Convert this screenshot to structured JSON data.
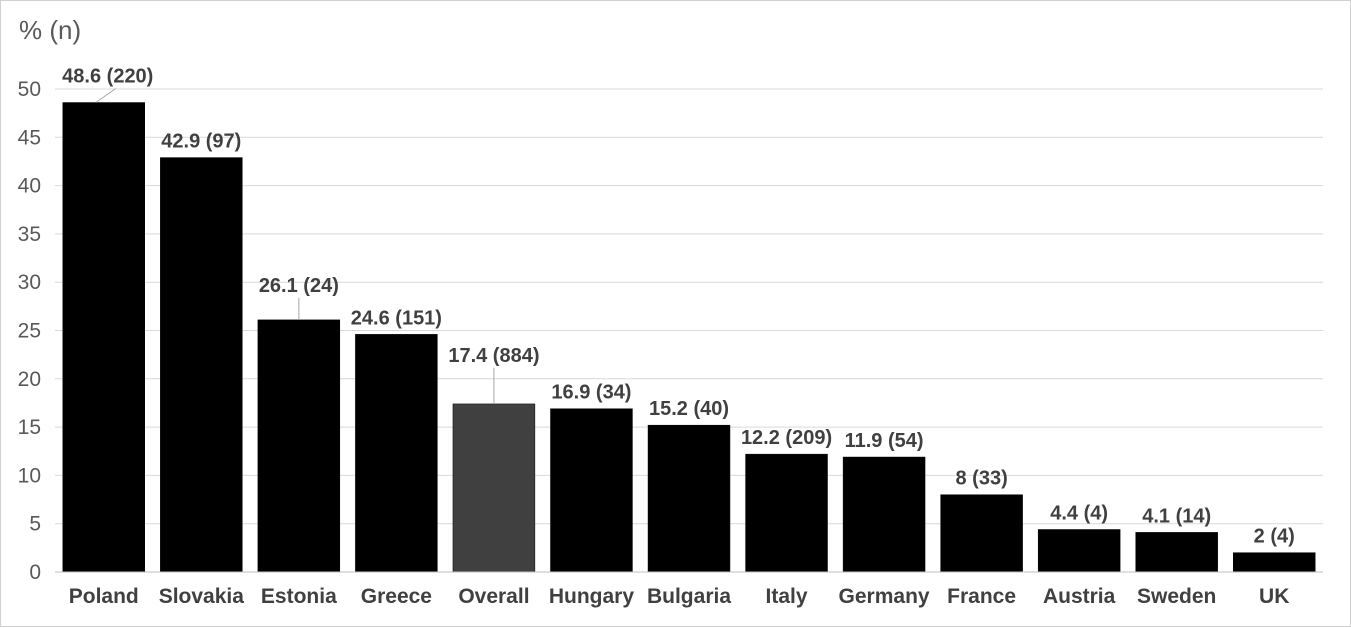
{
  "chart_data": {
    "type": "bar",
    "y_unit_label": "% (n)",
    "ylim": [
      0,
      50
    ],
    "y_ticks": [
      0,
      5,
      10,
      15,
      20,
      25,
      30,
      35,
      40,
      45,
      50
    ],
    "grid": true,
    "categories": [
      "Poland",
      "Slovakia",
      "Estonia",
      "Greece",
      "Overall",
      "Hungary",
      "Bulgaria",
      "Italy",
      "Germany",
      "France",
      "Austria",
      "Sweden",
      "UK"
    ],
    "values": [
      48.6,
      42.9,
      26.1,
      24.6,
      17.4,
      16.9,
      15.2,
      12.2,
      11.9,
      8,
      4.4,
      4.1,
      2
    ],
    "data_labels": [
      "48.6 (220)",
      "42.9 (97)",
      "26.1 (24)",
      "24.6 (151)",
      "17.4 (884)",
      "16.9 (34)",
      "15.2 (40)",
      "12.2 (209)",
      "11.9 (54)",
      "8 (33)",
      "4.4 (4)",
      "4.1 (14)",
      "2 (4)"
    ],
    "bar_colors": [
      "#000000",
      "#000000",
      "#000000",
      "#000000",
      "#404040",
      "#000000",
      "#000000",
      "#000000",
      "#000000",
      "#000000",
      "#000000",
      "#000000",
      "#000000"
    ]
  }
}
